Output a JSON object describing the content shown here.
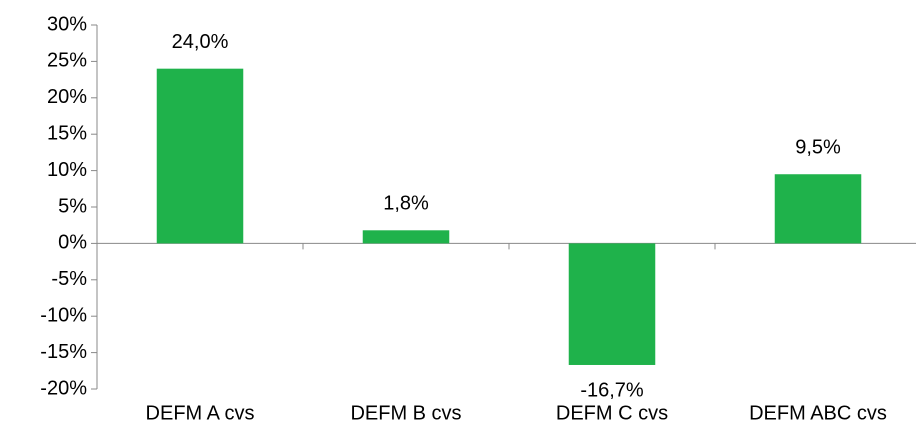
{
  "chart_data": {
    "type": "bar",
    "categories": [
      "DEFM A cvs",
      "DEFM B cvs",
      "DEFM C cvs",
      "DEFM ABC cvs"
    ],
    "values": [
      24.0,
      1.8,
      -16.7,
      9.5
    ],
    "value_labels": [
      "24,0%",
      "1,8%",
      "-16,7%",
      "9,5%"
    ],
    "color": "#1fb24b",
    "ylim": [
      -20,
      30
    ],
    "yticks": [
      {
        "value": -20,
        "label": "-20%"
      },
      {
        "value": -15,
        "label": "-15%"
      },
      {
        "value": -10,
        "label": "-10%"
      },
      {
        "value": -5,
        "label": "-5%"
      },
      {
        "value": 0,
        "label": "0%"
      },
      {
        "value": 5,
        "label": "5%"
      },
      {
        "value": 10,
        "label": "10%"
      },
      {
        "value": 15,
        "label": "15%"
      },
      {
        "value": 20,
        "label": "20%"
      },
      {
        "value": 25,
        "label": "25%"
      },
      {
        "value": 30,
        "label": "30%"
      }
    ],
    "grid": false
  }
}
